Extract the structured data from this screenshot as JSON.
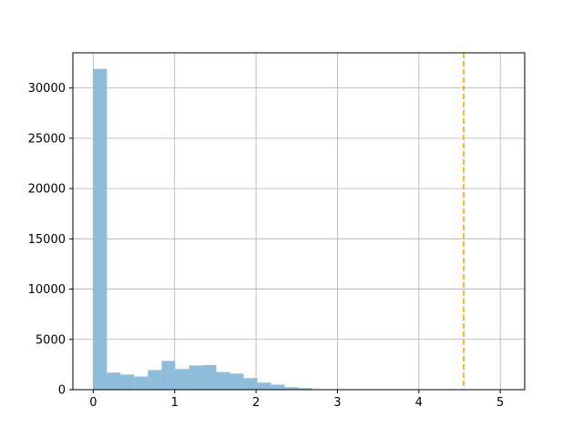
{
  "chart_data": {
    "type": "bar",
    "title": "",
    "xlabel": "",
    "ylabel": "",
    "xlim": [
      -0.25,
      5.3
    ],
    "ylim": [
      0,
      33500
    ],
    "grid": true,
    "xticks": [
      0,
      1,
      2,
      3,
      4,
      5
    ],
    "yticks": [
      0,
      5000,
      10000,
      15000,
      20000,
      25000,
      30000
    ],
    "bin_width": 0.168,
    "bins_start": [
      0,
      0.168,
      0.336,
      0.504,
      0.672,
      0.84,
      1.008,
      1.176,
      1.344,
      1.512,
      1.68,
      1.848,
      2.016,
      2.184,
      2.352,
      2.52,
      2.688,
      2.856,
      3.024,
      3.192,
      3.36,
      3.528,
      3.696,
      3.864,
      4.032,
      4.2,
      4.368,
      4.536,
      4.704,
      4.872
    ],
    "counts": [
      31900,
      1700,
      1500,
      1300,
      1950,
      2850,
      2050,
      2400,
      2450,
      1750,
      1600,
      1150,
      700,
      500,
      250,
      150,
      30,
      10,
      5,
      3,
      2,
      1,
      1,
      1,
      1,
      1,
      1,
      1,
      1,
      1
    ],
    "bar_color": "#8fbcdb",
    "reference_line": {
      "x": 4.55,
      "color": "#ffa500",
      "style": "dashed"
    }
  }
}
